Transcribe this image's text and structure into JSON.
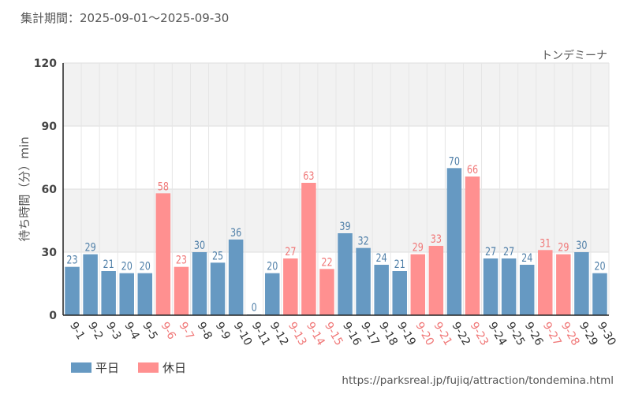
{
  "header": {
    "title": "集計期間：2025-09-01～2025-09-30",
    "attraction": "トンデミーナ",
    "source_url": "https://parksreal.jp/fujiq/attraction/tondemina.html"
  },
  "colors": {
    "weekday": "#6699c2",
    "holiday": "#ff9090",
    "weekday_label": "#4f7fa8",
    "holiday_label": "#f07878"
  },
  "legend": [
    {
      "key": "weekday",
      "label": "平日"
    },
    {
      "key": "holiday",
      "label": "休日"
    }
  ],
  "chart_data": {
    "type": "bar",
    "title": "",
    "xlabel": "",
    "ylabel": "待ち時間（分）min",
    "ylim": [
      0,
      120
    ],
    "yticks": [
      0,
      30,
      60,
      90,
      120
    ],
    "grid": true,
    "legend_position": "bottom-left",
    "categories": [
      "9-1",
      "9-2",
      "9-3",
      "9-4",
      "9-5",
      "9-6",
      "9-7",
      "9-8",
      "9-9",
      "9-10",
      "9-11",
      "9-12",
      "9-13",
      "9-14",
      "9-15",
      "9-16",
      "9-17",
      "9-18",
      "9-19",
      "9-20",
      "9-21",
      "9-22",
      "9-23",
      "9-24",
      "9-25",
      "9-26",
      "9-27",
      "9-28",
      "9-29",
      "9-30"
    ],
    "values": [
      23,
      29,
      21,
      20,
      20,
      58,
      23,
      30,
      25,
      36,
      0,
      20,
      27,
      63,
      22,
      39,
      32,
      24,
      21,
      29,
      33,
      70,
      66,
      27,
      27,
      24,
      31,
      29,
      30,
      20
    ],
    "day_type": [
      "weekday",
      "weekday",
      "weekday",
      "weekday",
      "weekday",
      "holiday",
      "holiday",
      "weekday",
      "weekday",
      "weekday",
      "weekday",
      "weekday",
      "holiday",
      "holiday",
      "holiday",
      "weekday",
      "weekday",
      "weekday",
      "weekday",
      "holiday",
      "holiday",
      "weekday",
      "holiday",
      "weekday",
      "weekday",
      "weekday",
      "holiday",
      "holiday",
      "weekday",
      "weekday"
    ]
  }
}
